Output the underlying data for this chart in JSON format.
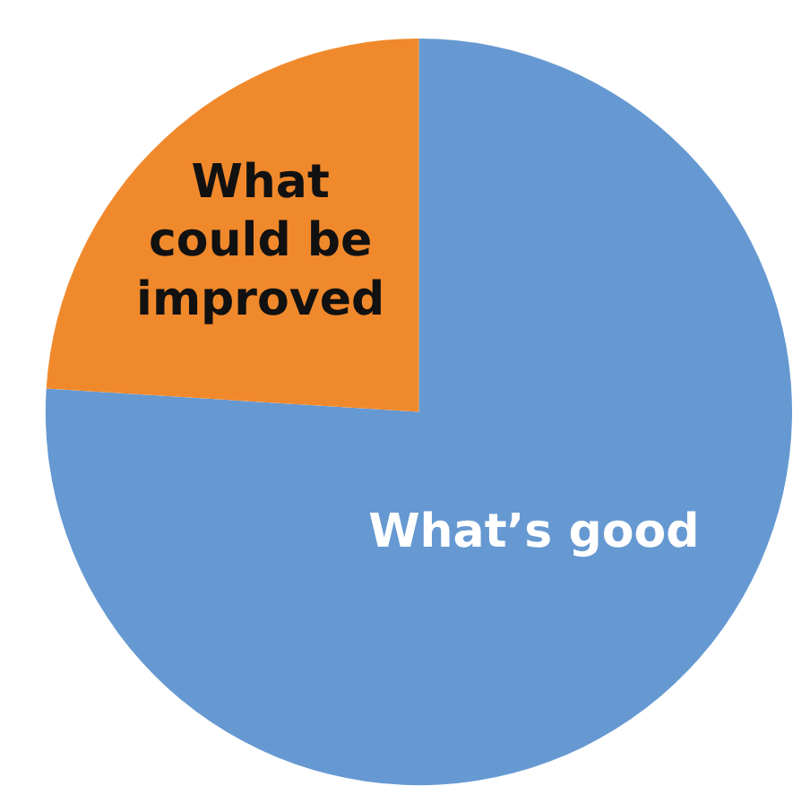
{
  "chart_data": {
    "type": "pie",
    "categories": [
      "What’s good",
      "What could be improved"
    ],
    "values": [
      76,
      24
    ],
    "colors": [
      "#6699d2",
      "#f0892c"
    ]
  }
}
